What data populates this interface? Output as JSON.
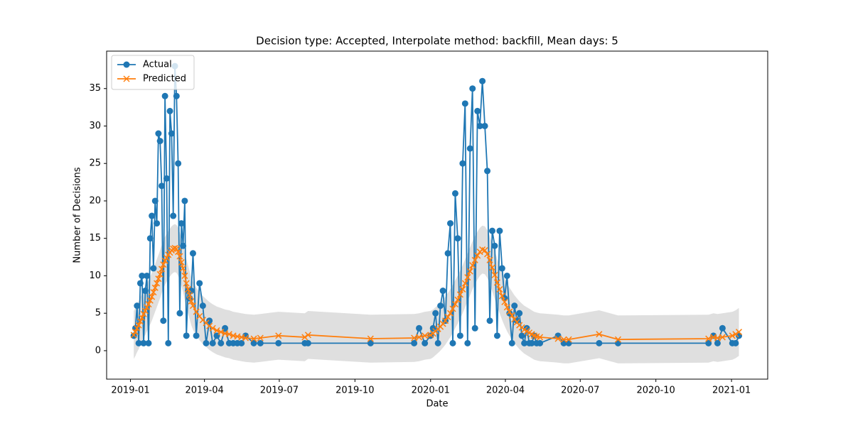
{
  "chart_data": {
    "type": "line",
    "title": "Decision type: Accepted, Interpolate method: backfill, Mean days: 5",
    "x_label": "Date",
    "y_label": "Number of Decisions",
    "x": [
      17901,
      17903,
      17905,
      17907,
      17909,
      17911,
      17913,
      17915,
      17917,
      17919,
      17921,
      17923,
      17925,
      17927,
      17929,
      17931,
      17933,
      17935,
      17937,
      17939,
      17941,
      17943,
      17945,
      17947,
      17949,
      17951,
      17953,
      17955,
      17957,
      17959,
      17961,
      17963,
      17965,
      17967,
      17969,
      17971,
      17973,
      17977,
      17981,
      17985,
      17989,
      17993,
      17997,
      18002,
      18007,
      18012,
      18017,
      18022,
      18027,
      18032,
      18037,
      18047,
      18055,
      18077,
      18109,
      18113,
      18189,
      18242,
      18248,
      18255,
      18262,
      18265,
      18268,
      18271,
      18274,
      18277,
      18280,
      18283,
      18286,
      18289,
      18292,
      18295,
      18298,
      18301,
      18304,
      18307,
      18310,
      18313,
      18316,
      18319,
      18322,
      18325,
      18328,
      18331,
      18334,
      18337,
      18340,
      18343,
      18346,
      18349,
      18352,
      18355,
      18358,
      18361,
      18364,
      18367,
      18370,
      18373,
      18376,
      18379,
      18382,
      18385,
      18388,
      18391,
      18395,
      18417,
      18424,
      18430,
      18467,
      18490,
      18600,
      18606,
      18611,
      18617,
      18629,
      18633,
      18637
    ],
    "series": [
      {
        "name": "Actual",
        "color": "#1f77b4",
        "marker": "o",
        "values": [
          2,
          3,
          6,
          1,
          9,
          10,
          1,
          8,
          10,
          1,
          15,
          18,
          11,
          20,
          17,
          29,
          28,
          22,
          4,
          34,
          23,
          1,
          32,
          29,
          18,
          38,
          34,
          25,
          5,
          17,
          14,
          20,
          2,
          8,
          7,
          8,
          13,
          2,
          9,
          6,
          1,
          4,
          1,
          2,
          1,
          3,
          1,
          1,
          1,
          1,
          2,
          1,
          1,
          1,
          1,
          1,
          1,
          1,
          3,
          1,
          2,
          3,
          5,
          1,
          6,
          8,
          4,
          13,
          17,
          1,
          21,
          15,
          2,
          25,
          33,
          1,
          27,
          35,
          3,
          32,
          30,
          36,
          30,
          24,
          4,
          16,
          14,
          2,
          16,
          11,
          7,
          10,
          5,
          1,
          6,
          4,
          5,
          2,
          1,
          3,
          1,
          1,
          2,
          1,
          1,
          2,
          1,
          1,
          1,
          1,
          1,
          2,
          1,
          3,
          1,
          1,
          2
        ]
      },
      {
        "name": "Predicted",
        "color": "#ff7f0e",
        "marker": "x",
        "values": [
          2.1,
          2.5,
          3.0,
          3.4,
          3.9,
          4.4,
          4.9,
          5.3,
          5.8,
          6.2,
          6.7,
          7.2,
          7.8,
          8.4,
          9.0,
          9.6,
          10.2,
          10.9,
          11.5,
          12.0,
          12.4,
          12.8,
          13.1,
          13.4,
          13.6,
          13.7,
          13.6,
          13.2,
          12.6,
          11.8,
          11.0,
          10.0,
          9.0,
          8.2,
          7.4,
          6.6,
          6.0,
          5.2,
          4.6,
          4.1,
          3.7,
          3.3,
          3.0,
          2.7,
          2.5,
          2.3,
          2.2,
          2.0,
          1.9,
          1.8,
          1.7,
          1.6,
          1.7,
          2.0,
          1.8,
          2.1,
          1.6,
          1.7,
          1.8,
          2.0,
          2.1,
          2.3,
          2.6,
          2.9,
          3.2,
          3.6,
          4.0,
          4.5,
          5.0,
          5.6,
          6.2,
          6.8,
          7.5,
          8.2,
          9.0,
          9.8,
          10.6,
          11.4,
          12.1,
          12.7,
          13.2,
          13.5,
          13.4,
          12.9,
          12.1,
          11.1,
          10.1,
          9.1,
          8.2,
          7.3,
          6.5,
          5.8,
          5.2,
          4.7,
          4.2,
          3.8,
          3.4,
          3.1,
          2.8,
          2.6,
          2.4,
          2.2,
          2.0,
          1.9,
          1.8,
          1.6,
          1.5,
          1.5,
          2.2,
          1.5,
          1.6,
          1.8,
          1.7,
          1.8,
          2.0,
          2.2,
          2.5
        ]
      }
    ],
    "band": {
      "color": "#d9d9d9",
      "lower": [
        -1.1,
        -0.7,
        -0.2,
        0.2,
        0.7,
        1.2,
        1.7,
        2.1,
        2.6,
        3.0,
        3.5,
        4.0,
        4.6,
        5.2,
        5.8,
        6.4,
        7.0,
        7.7,
        8.3,
        8.8,
        9.2,
        9.6,
        9.9,
        10.2,
        10.4,
        10.5,
        10.4,
        10.0,
        9.4,
        8.6,
        7.8,
        6.8,
        5.8,
        5.0,
        4.2,
        3.4,
        2.8,
        2.0,
        1.4,
        0.9,
        0.5,
        0.1,
        -0.2,
        -0.5,
        -0.7,
        -0.9,
        -1.0,
        -1.2,
        -1.3,
        -1.4,
        -1.5,
        -1.6,
        -1.5,
        -1.2,
        -1.4,
        -1.1,
        -1.6,
        -1.5,
        -1.4,
        -1.2,
        -1.1,
        -0.9,
        -0.6,
        -0.3,
        0.0,
        0.4,
        0.8,
        1.3,
        1.8,
        2.4,
        3.0,
        3.6,
        4.3,
        5.0,
        5.8,
        6.6,
        7.4,
        8.2,
        8.9,
        9.5,
        10.0,
        10.3,
        10.2,
        9.7,
        8.9,
        7.9,
        6.9,
        5.9,
        5.0,
        4.1,
        3.3,
        2.6,
        2.0,
        1.5,
        1.0,
        0.6,
        0.2,
        -0.1,
        -0.4,
        -0.6,
        -0.8,
        -1.0,
        -1.2,
        -1.3,
        -1.4,
        -1.6,
        -1.7,
        -1.7,
        -1.0,
        -1.7,
        -1.6,
        -1.4,
        -1.5,
        -1.4,
        -1.2,
        -1.0,
        -0.7
      ],
      "upper": [
        5.3,
        5.7,
        6.2,
        6.6,
        7.1,
        7.6,
        8.1,
        8.5,
        9.0,
        9.4,
        9.9,
        10.4,
        11.0,
        11.6,
        12.2,
        12.8,
        13.4,
        14.1,
        14.7,
        15.2,
        15.6,
        16.0,
        16.3,
        16.6,
        16.8,
        16.9,
        16.8,
        16.4,
        15.8,
        15.0,
        14.2,
        13.2,
        12.2,
        11.4,
        10.6,
        9.8,
        9.2,
        8.4,
        7.8,
        7.3,
        6.9,
        6.5,
        6.2,
        5.9,
        5.7,
        5.5,
        5.4,
        5.2,
        5.1,
        5.0,
        4.9,
        4.8,
        4.9,
        5.2,
        5.0,
        5.3,
        4.8,
        4.9,
        5.0,
        5.2,
        5.3,
        5.5,
        5.8,
        6.1,
        6.4,
        6.8,
        7.2,
        7.7,
        8.2,
        8.8,
        9.4,
        10.0,
        10.7,
        11.4,
        12.2,
        13.0,
        13.8,
        14.6,
        15.3,
        15.9,
        16.4,
        16.7,
        16.6,
        16.1,
        15.3,
        14.3,
        13.3,
        12.3,
        11.4,
        10.5,
        9.7,
        9.0,
        8.4,
        7.9,
        7.4,
        7.0,
        6.6,
        6.3,
        6.0,
        5.8,
        5.6,
        5.4,
        5.2,
        5.1,
        5.0,
        4.8,
        4.7,
        4.7,
        5.4,
        4.7,
        4.8,
        5.0,
        4.9,
        5.0,
        5.2,
        5.4,
        5.7
      ]
    },
    "xlim": [
      17868,
      18672
    ],
    "ylim": [
      -3.8,
      40.0
    ],
    "xticks": [
      {
        "value": 17897,
        "label": "2019-01"
      },
      {
        "value": 17987,
        "label": "2019-04"
      },
      {
        "value": 18078,
        "label": "2019-07"
      },
      {
        "value": 18170,
        "label": "2019-10"
      },
      {
        "value": 18262,
        "label": "2020-01"
      },
      {
        "value": 18353,
        "label": "2020-04"
      },
      {
        "value": 18444,
        "label": "2020-07"
      },
      {
        "value": 18536,
        "label": "2020-10"
      },
      {
        "value": 18628,
        "label": "2021-01"
      }
    ],
    "yticks": [
      0,
      5,
      10,
      15,
      20,
      25,
      30,
      35
    ],
    "legend": "upper left",
    "grid": false
  }
}
